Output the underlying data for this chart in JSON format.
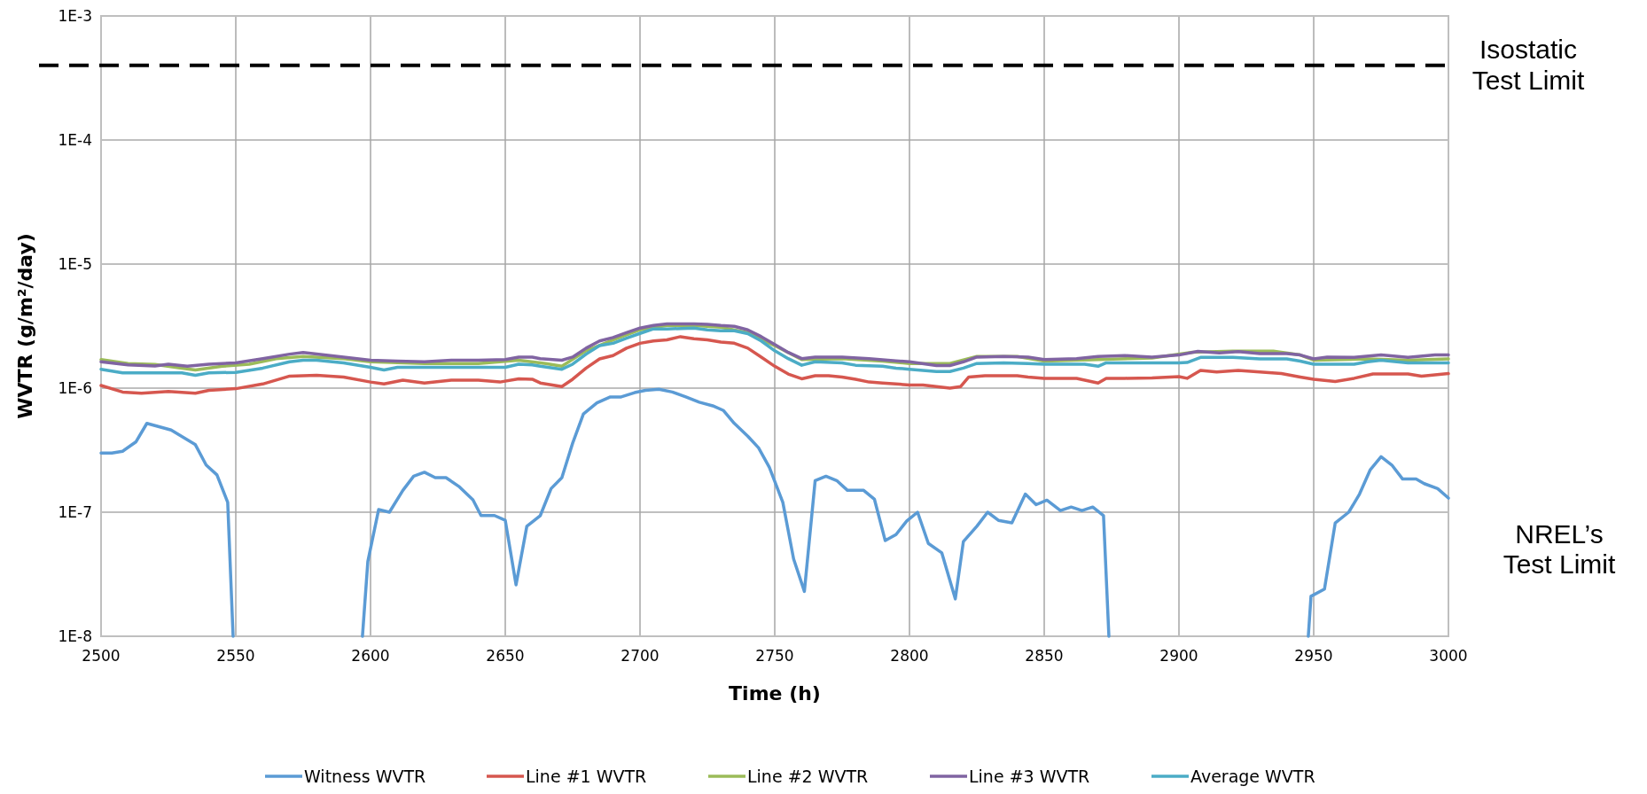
{
  "chart_data": {
    "type": "line",
    "xlabel": "Time (h)",
    "ylabel": "WVTR (g/m²/day)",
    "log": "y",
    "grid": true,
    "legend": "bottom",
    "marker": "none",
    "line_style": "solid",
    "xlim": [
      2500,
      3000
    ],
    "xticks": [
      2500,
      2550,
      2600,
      2650,
      2700,
      2750,
      2800,
      2850,
      2900,
      2950,
      3000
    ],
    "ylim": [
      1e-08,
      0.001
    ],
    "yticks": [
      {
        "value": 1e-08,
        "label": "1E-8"
      },
      {
        "value": 1e-07,
        "label": "1E-7"
      },
      {
        "value": 1e-06,
        "label": "1E-6"
      },
      {
        "value": 1e-05,
        "label": "1E-5"
      },
      {
        "value": 0.0001,
        "label": "1E-4"
      },
      {
        "value": 0.001,
        "label": "1E-3"
      }
    ],
    "ref_lines": [
      {
        "axis": "y",
        "value": 0.0004,
        "label": "Isostatic Test Limit",
        "color": "#000000",
        "line_style": "dashed"
      }
    ],
    "annotations": [
      "NREL’s Test Limit"
    ],
    "series": [
      {
        "name": "Witness WVTR",
        "color": "#5b9bd5",
        "x": [
          2500,
          2504,
          2508,
          2513,
          2517,
          2526,
          2535,
          2539,
          2543,
          2547,
          2549,
          2573,
          2597,
          2599,
          2603,
          2607,
          2612,
          2616,
          2620,
          2624,
          2628,
          2633,
          2638,
          2641,
          2646,
          2650,
          2654,
          2658,
          2663,
          2667,
          2671,
          2675,
          2679,
          2684,
          2689,
          2693,
          2698,
          2702,
          2707,
          2712,
          2717,
          2722,
          2727,
          2731,
          2735,
          2740,
          2744,
          2748,
          2753,
          2757,
          2761,
          2765,
          2769,
          2773,
          2777,
          2783,
          2787,
          2791,
          2795,
          2799,
          2803,
          2807,
          2812,
          2817,
          2820,
          2825,
          2829,
          2833,
          2838,
          2843,
          2847,
          2851,
          2856,
          2860,
          2864,
          2868,
          2872,
          2874,
          2911,
          2948,
          2949,
          2954,
          2958,
          2963,
          2967,
          2971,
          2975,
          2979,
          2983,
          2988,
          2991,
          2996,
          3000
        ],
        "values": [
          3e-07,
          3e-07,
          3.1e-07,
          3.7e-07,
          5.2e-07,
          4.6e-07,
          3.5e-07,
          2.4e-07,
          2e-07,
          1.2e-07,
          1e-08,
          null,
          1e-08,
          4e-08,
          1.05e-07,
          1e-07,
          1.5e-07,
          1.95e-07,
          2.1e-07,
          1.9e-07,
          1.9e-07,
          1.6e-07,
          1.26e-07,
          9.4e-08,
          9.4e-08,
          8.6e-08,
          2.6e-08,
          7.7e-08,
          9.4e-08,
          1.55e-07,
          1.9e-07,
          3.6e-07,
          6.2e-07,
          7.6e-07,
          8.5e-07,
          8.5e-07,
          9.2e-07,
          9.6e-07,
          9.8e-07,
          9.3e-07,
          8.5e-07,
          7.7e-07,
          7.2e-07,
          6.6e-07,
          5.2e-07,
          4.1e-07,
          3.3e-07,
          2.3e-07,
          1.2e-07,
          4.2e-08,
          2.3e-08,
          1.8e-07,
          1.95e-07,
          1.8e-07,
          1.5e-07,
          1.5e-07,
          1.27e-07,
          5.9e-08,
          6.6e-08,
          8.5e-08,
          1e-07,
          5.6e-08,
          4.7e-08,
          2e-08,
          5.8e-08,
          7.7e-08,
          1e-07,
          8.6e-08,
          8.2e-08,
          1.4e-07,
          1.15e-07,
          1.25e-07,
          1.03e-07,
          1.1e-07,
          1.03e-07,
          1.1e-07,
          9.4e-08,
          1e-08,
          null,
          1e-08,
          2.1e-08,
          2.4e-08,
          8.2e-08,
          1e-07,
          1.4e-07,
          2.2e-07,
          2.8e-07,
          2.4e-07,
          1.85e-07,
          1.85e-07,
          1.7e-07,
          1.55e-07,
          1.3e-07
        ]
      },
      {
        "name": "Line #1 WVTR",
        "color": "#d6574f",
        "x": [
          2500,
          2508,
          2515,
          2525,
          2535,
          2540,
          2550,
          2560,
          2570,
          2580,
          2590,
          2600,
          2605,
          2612,
          2620,
          2630,
          2640,
          2648,
          2655,
          2660,
          2663,
          2671,
          2675,
          2680,
          2685,
          2690,
          2695,
          2700,
          2705,
          2710,
          2715,
          2720,
          2725,
          2730,
          2735,
          2740,
          2745,
          2750,
          2755,
          2760,
          2765,
          2770,
          2775,
          2780,
          2785,
          2790,
          2795,
          2800,
          2805,
          2810,
          2815,
          2819,
          2822,
          2828,
          2835,
          2840,
          2844,
          2850,
          2862,
          2870,
          2873,
          2880,
          2890,
          2900,
          2903,
          2908,
          2914,
          2922,
          2930,
          2938,
          2945,
          2950,
          2958,
          2965,
          2972,
          2985,
          2990,
          3000
        ],
        "values": [
          1.05e-06,
          9.3e-07,
          9.1e-07,
          9.4e-07,
          9.1e-07,
          9.6e-07,
          9.9e-07,
          1.08e-06,
          1.25e-06,
          1.27e-06,
          1.23e-06,
          1.12e-06,
          1.08e-06,
          1.16e-06,
          1.1e-06,
          1.16e-06,
          1.16e-06,
          1.12e-06,
          1.19e-06,
          1.18e-06,
          1.1e-06,
          1.03e-06,
          1.18e-06,
          1.45e-06,
          1.72e-06,
          1.83e-06,
          2.1e-06,
          2.3e-06,
          2.4e-06,
          2.45e-06,
          2.6e-06,
          2.5e-06,
          2.45e-06,
          2.35e-06,
          2.3e-06,
          2.1e-06,
          1.78e-06,
          1.5e-06,
          1.3e-06,
          1.19e-06,
          1.26e-06,
          1.26e-06,
          1.23e-06,
          1.18e-06,
          1.12e-06,
          1.1e-06,
          1.08e-06,
          1.06e-06,
          1.06e-06,
          1.03e-06,
          1e-06,
          1.03e-06,
          1.23e-06,
          1.26e-06,
          1.26e-06,
          1.26e-06,
          1.23e-06,
          1.2e-06,
          1.2e-06,
          1.1e-06,
          1.2e-06,
          1.2e-06,
          1.21e-06,
          1.24e-06,
          1.2e-06,
          1.39e-06,
          1.35e-06,
          1.39e-06,
          1.35e-06,
          1.31e-06,
          1.23e-06,
          1.18e-06,
          1.13e-06,
          1.2e-06,
          1.3e-06,
          1.3e-06,
          1.25e-06,
          1.31e-06
        ]
      },
      {
        "name": "Line #2 WVTR",
        "color": "#9bbb59",
        "x": [
          2500,
          2510,
          2520,
          2530,
          2535,
          2545,
          2555,
          2565,
          2575,
          2590,
          2600,
          2620,
          2640,
          2655,
          2665,
          2671,
          2680,
          2690,
          2700,
          2710,
          2720,
          2730,
          2740,
          2750,
          2760,
          2775,
          2790,
          2800,
          2815,
          2825,
          2840,
          2850,
          2870,
          2890,
          2905,
          2920,
          2935,
          2945,
          2950,
          2970,
          2985,
          3000
        ],
        "values": [
          1.7e-06,
          1.58e-06,
          1.55e-06,
          1.45e-06,
          1.4e-06,
          1.5e-06,
          1.56e-06,
          1.73e-06,
          1.8e-06,
          1.73e-06,
          1.63e-06,
          1.58e-06,
          1.58e-06,
          1.68e-06,
          1.58e-06,
          1.5e-06,
          2e-06,
          2.45e-06,
          2.95e-06,
          3.2e-06,
          3.2e-06,
          3.1e-06,
          2.8e-06,
          2.2e-06,
          1.7e-06,
          1.73e-06,
          1.65e-06,
          1.58e-06,
          1.58e-06,
          1.8e-06,
          1.8e-06,
          1.65e-06,
          1.7e-06,
          1.75e-06,
          1.95e-06,
          1.99e-06,
          1.99e-06,
          1.85e-06,
          1.68e-06,
          1.72e-06,
          1.68e-06,
          1.72e-06
        ]
      },
      {
        "name": "Line #3 WVTR",
        "color": "#8064a2",
        "x": [
          2500,
          2510,
          2520,
          2525,
          2532,
          2540,
          2550,
          2560,
          2570,
          2575,
          2585,
          2590,
          2600,
          2610,
          2620,
          2630,
          2640,
          2650,
          2655,
          2660,
          2663,
          2671,
          2675,
          2680,
          2685,
          2690,
          2695,
          2700,
          2705,
          2710,
          2720,
          2725,
          2730,
          2735,
          2740,
          2745,
          2750,
          2755,
          2760,
          2765,
          2775,
          2785,
          2795,
          2800,
          2810,
          2815,
          2820,
          2825,
          2835,
          2844,
          2850,
          2862,
          2870,
          2880,
          2890,
          2900,
          2907,
          2915,
          2922,
          2930,
          2940,
          2945,
          2950,
          2955,
          2965,
          2975,
          2985,
          2995,
          3000
        ],
        "values": [
          1.63e-06,
          1.54e-06,
          1.51e-06,
          1.56e-06,
          1.5e-06,
          1.56e-06,
          1.6e-06,
          1.73e-06,
          1.88e-06,
          1.94e-06,
          1.83e-06,
          1.78e-06,
          1.68e-06,
          1.65e-06,
          1.63e-06,
          1.68e-06,
          1.68e-06,
          1.7e-06,
          1.78e-06,
          1.78e-06,
          1.73e-06,
          1.68e-06,
          1.78e-06,
          2.1e-06,
          2.4e-06,
          2.56e-06,
          2.8e-06,
          3.05e-06,
          3.2e-06,
          3.3e-06,
          3.3e-06,
          3.27e-06,
          3.2e-06,
          3.15e-06,
          2.95e-06,
          2.6e-06,
          2.25e-06,
          1.94e-06,
          1.73e-06,
          1.78e-06,
          1.78e-06,
          1.73e-06,
          1.66e-06,
          1.63e-06,
          1.52e-06,
          1.52e-06,
          1.63e-06,
          1.78e-06,
          1.8e-06,
          1.78e-06,
          1.7e-06,
          1.73e-06,
          1.8e-06,
          1.83e-06,
          1.78e-06,
          1.85e-06,
          1.98e-06,
          1.92e-06,
          1.97e-06,
          1.9e-06,
          1.9e-06,
          1.85e-06,
          1.72e-06,
          1.78e-06,
          1.77e-06,
          1.85e-06,
          1.77e-06,
          1.85e-06,
          1.85e-06
        ]
      },
      {
        "name": "Average WVTR",
        "color": "#4bacc6",
        "x": [
          2500,
          2508,
          2520,
          2530,
          2535,
          2540,
          2550,
          2560,
          2570,
          2575,
          2580,
          2590,
          2600,
          2605,
          2610,
          2620,
          2640,
          2650,
          2655,
          2660,
          2663,
          2671,
          2675,
          2680,
          2685,
          2690,
          2695,
          2700,
          2705,
          2710,
          2720,
          2725,
          2730,
          2735,
          2740,
          2745,
          2750,
          2755,
          2760,
          2765,
          2775,
          2780,
          2790,
          2795,
          2800,
          2810,
          2815,
          2820,
          2825,
          2835,
          2844,
          2850,
          2865,
          2870,
          2873,
          2880,
          2900,
          2903,
          2908,
          2920,
          2930,
          2940,
          2945,
          2950,
          2965,
          2970,
          2975,
          2985,
          3000
        ],
        "values": [
          1.42e-06,
          1.33e-06,
          1.33e-06,
          1.33e-06,
          1.27e-06,
          1.33e-06,
          1.34e-06,
          1.45e-06,
          1.63e-06,
          1.68e-06,
          1.68e-06,
          1.6e-06,
          1.47e-06,
          1.4e-06,
          1.47e-06,
          1.47e-06,
          1.47e-06,
          1.47e-06,
          1.56e-06,
          1.54e-06,
          1.5e-06,
          1.42e-06,
          1.56e-06,
          1.88e-06,
          2.2e-06,
          2.3e-06,
          2.53e-06,
          2.76e-06,
          3e-06,
          3e-06,
          3.05e-06,
          2.95e-06,
          2.9e-06,
          2.9e-06,
          2.75e-06,
          2.4e-06,
          2e-06,
          1.73e-06,
          1.53e-06,
          1.63e-06,
          1.6e-06,
          1.53e-06,
          1.5e-06,
          1.45e-06,
          1.42e-06,
          1.36e-06,
          1.36e-06,
          1.45e-06,
          1.58e-06,
          1.6e-06,
          1.58e-06,
          1.56e-06,
          1.56e-06,
          1.5e-06,
          1.6e-06,
          1.6e-06,
          1.6e-06,
          1.61e-06,
          1.77e-06,
          1.77e-06,
          1.72e-06,
          1.72e-06,
          1.65e-06,
          1.56e-06,
          1.56e-06,
          1.63e-06,
          1.68e-06,
          1.6e-06,
          1.6e-06
        ]
      }
    ]
  }
}
